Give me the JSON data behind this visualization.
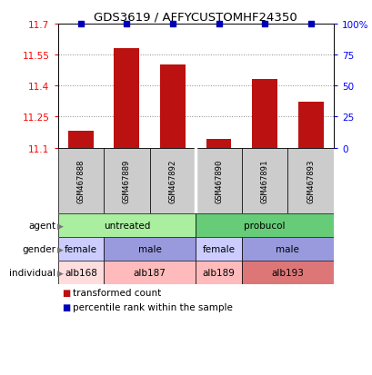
{
  "title": "GDS3619 / AFFYCUSTOMHF24350",
  "samples": [
    "GSM467888",
    "GSM467889",
    "GSM467892",
    "GSM467890",
    "GSM467891",
    "GSM467893"
  ],
  "bar_values": [
    11.18,
    11.58,
    11.5,
    11.14,
    11.43,
    11.32
  ],
  "ylim": [
    11.1,
    11.7
  ],
  "yticks": [
    11.1,
    11.25,
    11.4,
    11.55,
    11.7
  ],
  "ytick_labels": [
    "11.1",
    "11.25",
    "11.4",
    "11.55",
    "11.7"
  ],
  "right_yticks": [
    0,
    25,
    50,
    75,
    100
  ],
  "right_ytick_labels": [
    "0",
    "25",
    "50",
    "75",
    "100%"
  ],
  "bar_color": "#bb1111",
  "dot_color": "#0000bb",
  "grid_linestyle": ":",
  "agent_row": {
    "label": "agent",
    "groups": [
      {
        "text": "untreated",
        "start": 0,
        "end": 3,
        "color": "#aaeea0"
      },
      {
        "text": "probucol",
        "start": 3,
        "end": 6,
        "color": "#66cc77"
      }
    ]
  },
  "gender_row": {
    "label": "gender",
    "groups": [
      {
        "text": "female",
        "start": 0,
        "end": 1,
        "color": "#ccccff"
      },
      {
        "text": "male",
        "start": 1,
        "end": 3,
        "color": "#9999dd"
      },
      {
        "text": "female",
        "start": 3,
        "end": 4,
        "color": "#ccccff"
      },
      {
        "text": "male",
        "start": 4,
        "end": 6,
        "color": "#9999dd"
      }
    ]
  },
  "individual_row": {
    "label": "individual",
    "groups": [
      {
        "text": "alb168",
        "start": 0,
        "end": 1,
        "color": "#ffdddd"
      },
      {
        "text": "alb187",
        "start": 1,
        "end": 3,
        "color": "#ffbbbb"
      },
      {
        "text": "alb189",
        "start": 3,
        "end": 4,
        "color": "#ffbbbb"
      },
      {
        "text": "alb193",
        "start": 4,
        "end": 6,
        "color": "#dd7777"
      }
    ]
  },
  "legend": [
    {
      "label": "transformed count",
      "color": "#bb1111",
      "marker": "s"
    },
    {
      "label": "percentile rank within the sample",
      "color": "#0000bb",
      "marker": "s"
    }
  ]
}
